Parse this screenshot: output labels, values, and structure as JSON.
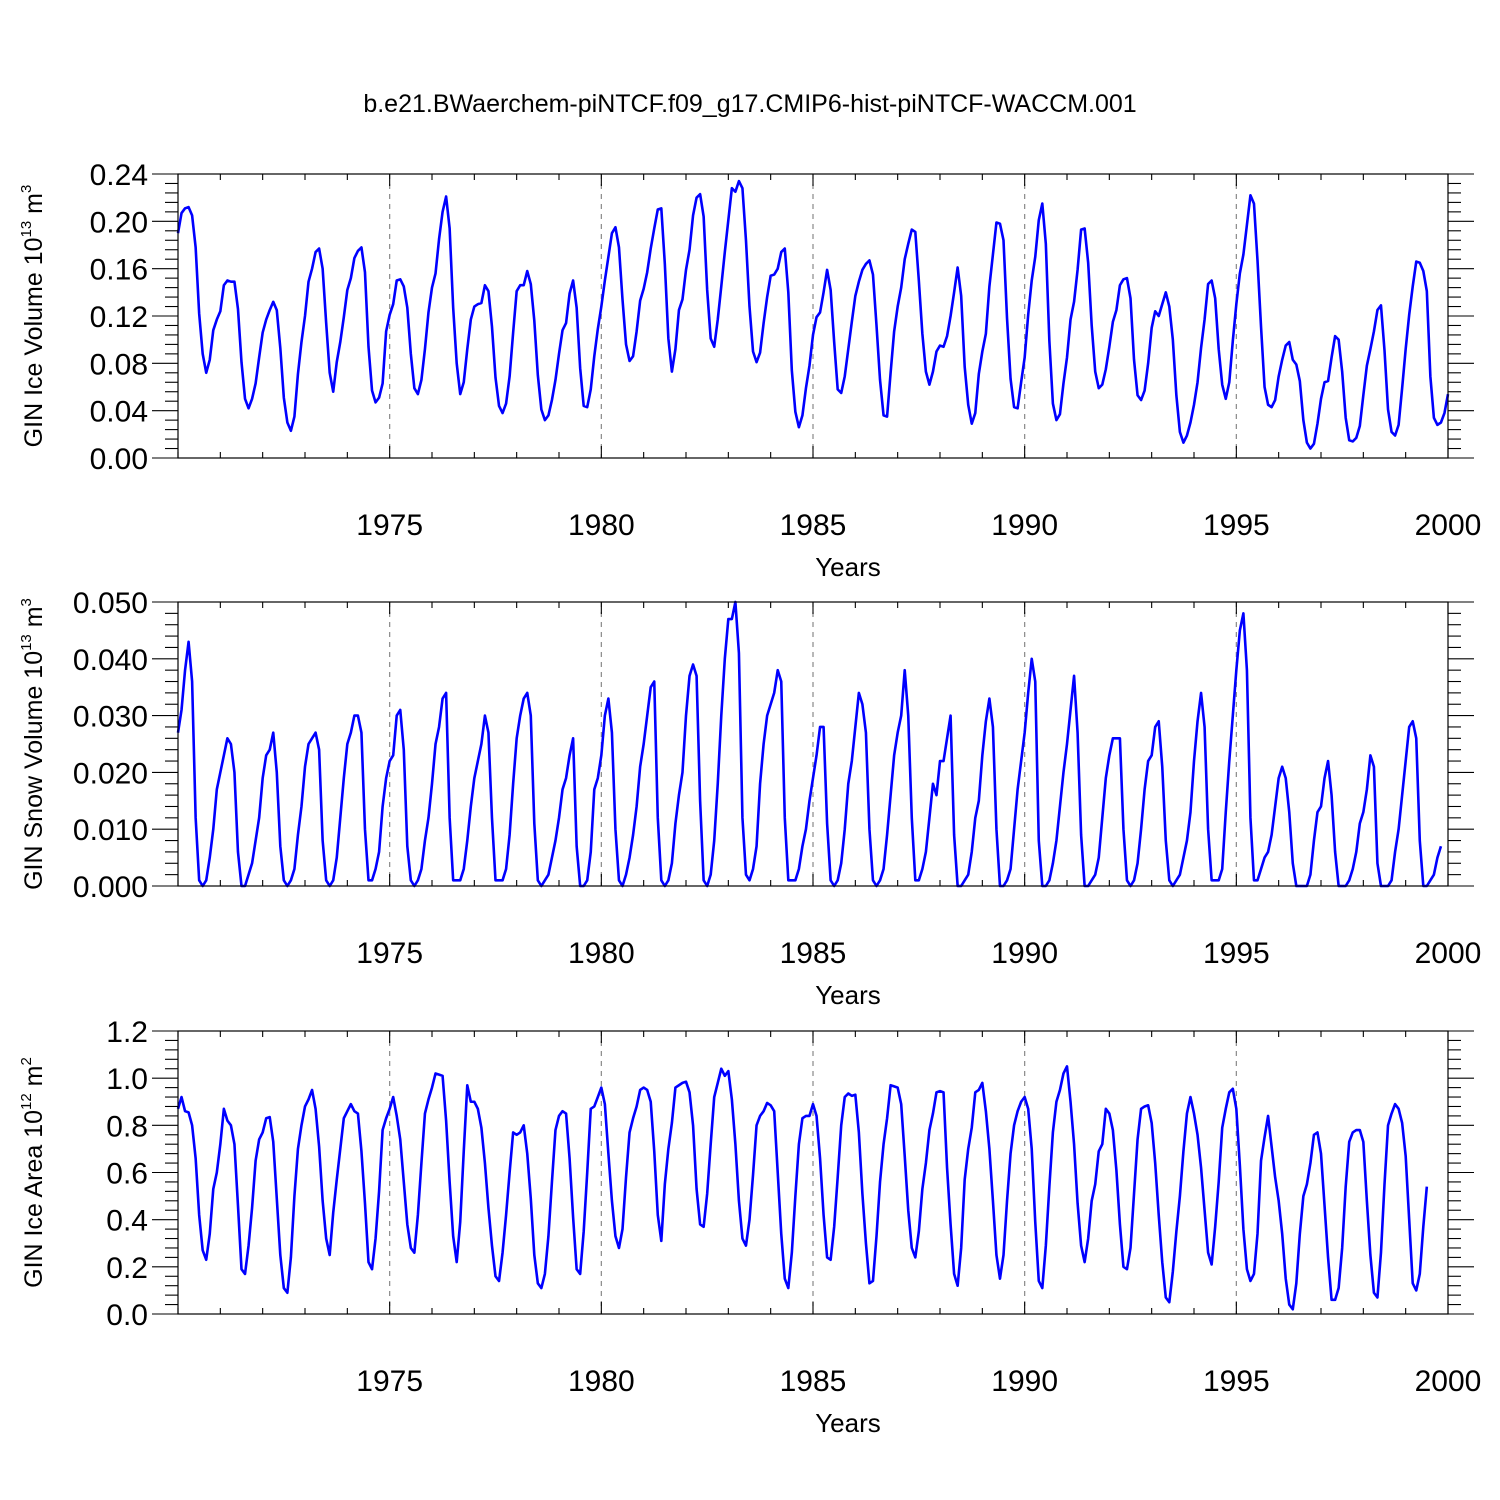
{
  "figure_title": "b.e21.BWaerchem-piNTCF.f09_g17.CMIP6-hist-piNTCF-WACCM.001",
  "colors": {
    "line": "#0000ff",
    "grid": "#888888",
    "axis": "#000000"
  },
  "chart_data": [
    {
      "type": "line",
      "name": "ice-volume",
      "ylabel": {
        "text": "GIN Ice Volume 10",
        "exp": "13",
        "unit": " m",
        "unit_exp": "3"
      },
      "xlabel": "Years",
      "xlim": [
        1970.0,
        2000.0
      ],
      "ylim": [
        0.0,
        0.24
      ],
      "xticks": [
        1975,
        1980,
        1985,
        1990,
        1995,
        2000
      ],
      "yticks": [
        "0.00",
        "0.04",
        "0.08",
        "0.12",
        "0.16",
        "0.20",
        "0.24"
      ],
      "start_year": 1970.0,
      "dx": 0.0833333,
      "values": [
        0.19,
        0.207,
        0.211,
        0.212,
        0.205,
        0.178,
        0.122,
        0.088,
        0.072,
        0.083,
        0.108,
        0.117,
        0.124,
        0.146,
        0.15,
        0.149,
        0.149,
        0.126,
        0.081,
        0.05,
        0.042,
        0.05,
        0.063,
        0.085,
        0.106,
        0.117,
        0.125,
        0.132,
        0.125,
        0.093,
        0.051,
        0.03,
        0.023,
        0.035,
        0.071,
        0.098,
        0.12,
        0.149,
        0.16,
        0.174,
        0.177,
        0.16,
        0.114,
        0.072,
        0.056,
        0.081,
        0.098,
        0.119,
        0.142,
        0.152,
        0.169,
        0.175,
        0.178,
        0.157,
        0.094,
        0.057,
        0.047,
        0.051,
        0.063,
        0.107,
        0.121,
        0.13,
        0.15,
        0.151,
        0.145,
        0.127,
        0.088,
        0.059,
        0.054,
        0.066,
        0.092,
        0.123,
        0.144,
        0.156,
        0.185,
        0.208,
        0.221,
        0.194,
        0.127,
        0.08,
        0.054,
        0.064,
        0.092,
        0.117,
        0.128,
        0.13,
        0.131,
        0.146,
        0.141,
        0.111,
        0.068,
        0.044,
        0.038,
        0.046,
        0.069,
        0.106,
        0.141,
        0.146,
        0.146,
        0.158,
        0.147,
        0.116,
        0.07,
        0.041,
        0.032,
        0.036,
        0.049,
        0.066,
        0.088,
        0.108,
        0.114,
        0.139,
        0.15,
        0.127,
        0.076,
        0.044,
        0.043,
        0.058,
        0.086,
        0.109,
        0.128,
        0.15,
        0.17,
        0.19,
        0.195,
        0.178,
        0.134,
        0.096,
        0.082,
        0.086,
        0.107,
        0.133,
        0.143,
        0.157,
        0.177,
        0.194,
        0.21,
        0.211,
        0.164,
        0.101,
        0.073,
        0.092,
        0.125,
        0.134,
        0.159,
        0.176,
        0.205,
        0.22,
        0.223,
        0.204,
        0.142,
        0.101,
        0.094,
        0.117,
        0.145,
        0.174,
        0.201,
        0.228,
        0.225,
        0.234,
        0.228,
        0.184,
        0.128,
        0.09,
        0.081,
        0.089,
        0.114,
        0.136,
        0.154,
        0.155,
        0.16,
        0.174,
        0.177,
        0.14,
        0.074,
        0.039,
        0.026,
        0.036,
        0.059,
        0.078,
        0.104,
        0.119,
        0.123,
        0.14,
        0.159,
        0.142,
        0.098,
        0.058,
        0.055,
        0.069,
        0.092,
        0.115,
        0.137,
        0.149,
        0.159,
        0.164,
        0.167,
        0.155,
        0.112,
        0.066,
        0.036,
        0.035,
        0.072,
        0.107,
        0.128,
        0.144,
        0.168,
        0.181,
        0.193,
        0.191,
        0.15,
        0.105,
        0.073,
        0.062,
        0.073,
        0.09,
        0.095,
        0.094,
        0.103,
        0.12,
        0.14,
        0.161,
        0.137,
        0.077,
        0.045,
        0.029,
        0.038,
        0.071,
        0.09,
        0.105,
        0.145,
        0.172,
        0.199,
        0.198,
        0.184,
        0.118,
        0.067,
        0.043,
        0.042,
        0.064,
        0.085,
        0.121,
        0.15,
        0.17,
        0.201,
        0.215,
        0.181,
        0.099,
        0.046,
        0.032,
        0.037,
        0.063,
        0.085,
        0.117,
        0.132,
        0.159,
        0.193,
        0.194,
        0.165,
        0.112,
        0.073,
        0.059,
        0.062,
        0.075,
        0.094,
        0.115,
        0.125,
        0.146,
        0.151,
        0.152,
        0.135,
        0.083,
        0.053,
        0.049,
        0.057,
        0.08,
        0.11,
        0.124,
        0.12,
        0.13,
        0.14,
        0.128,
        0.1,
        0.053,
        0.022,
        0.013,
        0.019,
        0.03,
        0.045,
        0.064,
        0.093,
        0.117,
        0.147,
        0.15,
        0.135,
        0.092,
        0.062,
        0.05,
        0.064,
        0.099,
        0.13,
        0.156,
        0.172,
        0.197,
        0.222,
        0.215,
        0.167,
        0.111,
        0.06,
        0.045,
        0.043,
        0.049,
        0.069,
        0.083,
        0.095,
        0.098,
        0.083,
        0.079,
        0.065,
        0.032,
        0.013,
        0.008,
        0.012,
        0.029,
        0.05,
        0.064,
        0.065,
        0.085,
        0.103,
        0.1,
        0.073,
        0.034,
        0.015,
        0.014,
        0.017,
        0.027,
        0.053,
        0.078,
        0.092,
        0.107,
        0.125,
        0.129,
        0.091,
        0.041,
        0.022,
        0.019,
        0.028,
        0.059,
        0.092,
        0.121,
        0.145,
        0.166,
        0.165,
        0.158,
        0.141,
        0.069,
        0.034,
        0.028,
        0.03,
        0.038,
        0.054
      ]
    },
    {
      "type": "line",
      "name": "snow-volume",
      "ylabel": {
        "text": "GIN Snow Volume 10",
        "exp": "13",
        "unit": " m",
        "unit_exp": "3"
      },
      "xlabel": "Years",
      "xlim": [
        1970.0,
        2000.0
      ],
      "ylim": [
        0.0,
        0.05
      ],
      "xticks": [
        1975,
        1980,
        1985,
        1990,
        1995,
        2000
      ],
      "yticks": [
        "0.000",
        "0.010",
        "0.020",
        "0.030",
        "0.040",
        "0.050"
      ],
      "start_year": 1970.0,
      "dx": 0.0833333,
      "values": [
        0.027,
        0.031,
        0.038,
        0.043,
        0.036,
        0.012,
        0.001,
        0.0,
        0.001,
        0.005,
        0.01,
        0.017,
        0.02,
        0.023,
        0.026,
        0.025,
        0.02,
        0.006,
        0.0,
        0.0,
        0.002,
        0.004,
        0.008,
        0.012,
        0.019,
        0.023,
        0.024,
        0.027,
        0.02,
        0.007,
        0.001,
        0.0,
        0.001,
        0.003,
        0.009,
        0.014,
        0.021,
        0.025,
        0.026,
        0.027,
        0.024,
        0.008,
        0.001,
        0.0,
        0.001,
        0.005,
        0.012,
        0.019,
        0.025,
        0.027,
        0.03,
        0.03,
        0.027,
        0.01,
        0.001,
        0.001,
        0.003,
        0.006,
        0.014,
        0.019,
        0.022,
        0.023,
        0.03,
        0.031,
        0.024,
        0.007,
        0.001,
        0.0,
        0.001,
        0.003,
        0.008,
        0.012,
        0.018,
        0.025,
        0.028,
        0.033,
        0.034,
        0.012,
        0.001,
        0.001,
        0.001,
        0.003,
        0.008,
        0.014,
        0.019,
        0.022,
        0.025,
        0.03,
        0.027,
        0.012,
        0.001,
        0.001,
        0.001,
        0.003,
        0.009,
        0.018,
        0.026,
        0.03,
        0.033,
        0.034,
        0.03,
        0.011,
        0.001,
        0.0,
        0.001,
        0.002,
        0.005,
        0.008,
        0.012,
        0.017,
        0.019,
        0.023,
        0.026,
        0.007,
        0.0,
        0.0,
        0.001,
        0.006,
        0.017,
        0.019,
        0.023,
        0.03,
        0.033,
        0.027,
        0.01,
        0.001,
        0.0,
        0.002,
        0.005,
        0.009,
        0.014,
        0.021,
        0.025,
        0.03,
        0.035,
        0.036,
        0.012,
        0.001,
        0.0,
        0.001,
        0.004,
        0.011,
        0.016,
        0.02,
        0.03,
        0.037,
        0.039,
        0.037,
        0.015,
        0.001,
        0.0,
        0.002,
        0.008,
        0.018,
        0.03,
        0.04,
        0.047,
        0.047,
        0.05,
        0.041,
        0.012,
        0.002,
        0.001,
        0.003,
        0.007,
        0.018,
        0.025,
        0.03,
        0.032,
        0.034,
        0.038,
        0.036,
        0.012,
        0.001,
        0.001,
        0.001,
        0.003,
        0.007,
        0.01,
        0.015,
        0.019,
        0.023,
        0.028,
        0.028,
        0.011,
        0.001,
        0.0,
        0.001,
        0.004,
        0.01,
        0.018,
        0.022,
        0.028,
        0.034,
        0.032,
        0.027,
        0.01,
        0.001,
        0.0,
        0.001,
        0.003,
        0.009,
        0.016,
        0.023,
        0.027,
        0.03,
        0.038,
        0.03,
        0.012,
        0.001,
        0.001,
        0.003,
        0.006,
        0.012,
        0.018,
        0.016,
        0.022,
        0.022,
        0.026,
        0.03,
        0.009,
        0.0,
        0.0,
        0.001,
        0.002,
        0.006,
        0.012,
        0.015,
        0.023,
        0.029,
        0.033,
        0.028,
        0.01,
        0.0,
        0.0,
        0.001,
        0.003,
        0.01,
        0.017,
        0.022,
        0.027,
        0.034,
        0.04,
        0.036,
        0.008,
        0.0,
        0.0,
        0.001,
        0.004,
        0.008,
        0.014,
        0.02,
        0.025,
        0.031,
        0.037,
        0.027,
        0.009,
        0.0,
        0.0,
        0.001,
        0.002,
        0.005,
        0.012,
        0.019,
        0.023,
        0.026,
        0.026,
        0.026,
        0.01,
        0.001,
        0.0,
        0.001,
        0.004,
        0.01,
        0.017,
        0.022,
        0.023,
        0.028,
        0.029,
        0.021,
        0.008,
        0.001,
        0.0,
        0.001,
        0.002,
        0.005,
        0.008,
        0.013,
        0.022,
        0.029,
        0.034,
        0.028,
        0.01,
        0.001,
        0.001,
        0.001,
        0.003,
        0.013,
        0.022,
        0.03,
        0.038,
        0.045,
        0.048,
        0.038,
        0.012,
        0.001,
        0.001,
        0.003,
        0.005,
        0.006,
        0.009,
        0.014,
        0.019,
        0.021,
        0.019,
        0.013,
        0.004,
        0.0,
        0.0,
        0.0,
        0.0,
        0.002,
        0.008,
        0.013,
        0.014,
        0.019,
        0.022,
        0.016,
        0.006,
        0.0,
        0.0,
        0.0,
        0.001,
        0.003,
        0.006,
        0.011,
        0.013,
        0.017,
        0.023,
        0.021,
        0.004,
        0.0,
        0.0,
        0.0,
        0.001,
        0.006,
        0.01,
        0.016,
        0.022,
        0.028,
        0.029,
        0.026,
        0.008,
        0.0,
        0.0,
        0.001,
        0.002,
        0.005,
        0.007
      ]
    },
    {
      "type": "line",
      "name": "ice-area",
      "ylabel": {
        "text": "GIN Ice Area 10",
        "exp": "12",
        "unit": " m",
        "unit_exp": "2"
      },
      "xlabel": "Years",
      "xlim": [
        1970.0,
        2000.0
      ],
      "ylim": [
        0.0,
        1.2
      ],
      "xticks": [
        1975,
        1980,
        1985,
        1990,
        1995,
        2000
      ],
      "yticks": [
        "0.0",
        "0.2",
        "0.4",
        "0.6",
        "0.8",
        "1.0",
        "1.2"
      ],
      "start_year": 1970.0,
      "dx": 0.0833333,
      "values": [
        0.87,
        0.92,
        0.86,
        0.855,
        0.8,
        0.66,
        0.42,
        0.27,
        0.23,
        0.34,
        0.53,
        0.6,
        0.72,
        0.87,
        0.82,
        0.8,
        0.72,
        0.46,
        0.19,
        0.17,
        0.29,
        0.45,
        0.65,
        0.74,
        0.77,
        0.83,
        0.835,
        0.73,
        0.49,
        0.25,
        0.11,
        0.09,
        0.24,
        0.5,
        0.7,
        0.8,
        0.88,
        0.91,
        0.95,
        0.87,
        0.71,
        0.48,
        0.32,
        0.25,
        0.43,
        0.57,
        0.7,
        0.83,
        0.86,
        0.89,
        0.86,
        0.85,
        0.69,
        0.47,
        0.22,
        0.19,
        0.32,
        0.52,
        0.78,
        0.83,
        0.87,
        0.92,
        0.84,
        0.74,
        0.56,
        0.38,
        0.28,
        0.26,
        0.42,
        0.64,
        0.85,
        0.91,
        0.96,
        1.02,
        1.015,
        1.01,
        0.82,
        0.56,
        0.33,
        0.22,
        0.39,
        0.69,
        0.97,
        0.9,
        0.9,
        0.87,
        0.79,
        0.64,
        0.45,
        0.29,
        0.16,
        0.14,
        0.26,
        0.42,
        0.6,
        0.77,
        0.76,
        0.77,
        0.8,
        0.68,
        0.49,
        0.25,
        0.13,
        0.11,
        0.17,
        0.33,
        0.56,
        0.78,
        0.84,
        0.86,
        0.85,
        0.66,
        0.41,
        0.19,
        0.17,
        0.35,
        0.6,
        0.87,
        0.88,
        0.92,
        0.96,
        0.89,
        0.68,
        0.48,
        0.33,
        0.28,
        0.36,
        0.58,
        0.77,
        0.83,
        0.88,
        0.95,
        0.96,
        0.95,
        0.9,
        0.69,
        0.42,
        0.31,
        0.55,
        0.7,
        0.81,
        0.96,
        0.97,
        0.98,
        0.985,
        0.94,
        0.8,
        0.53,
        0.38,
        0.37,
        0.51,
        0.72,
        0.92,
        0.98,
        1.04,
        1.01,
        1.03,
        0.91,
        0.72,
        0.48,
        0.32,
        0.29,
        0.4,
        0.59,
        0.8,
        0.84,
        0.86,
        0.895,
        0.885,
        0.86,
        0.6,
        0.34,
        0.15,
        0.11,
        0.26,
        0.5,
        0.72,
        0.83,
        0.84,
        0.84,
        0.89,
        0.84,
        0.66,
        0.42,
        0.24,
        0.23,
        0.37,
        0.58,
        0.8,
        0.92,
        0.935,
        0.925,
        0.93,
        0.77,
        0.51,
        0.3,
        0.13,
        0.14,
        0.33,
        0.56,
        0.72,
        0.83,
        0.97,
        0.965,
        0.96,
        0.89,
        0.67,
        0.44,
        0.28,
        0.24,
        0.35,
        0.53,
        0.64,
        0.78,
        0.85,
        0.94,
        0.945,
        0.94,
        0.62,
        0.38,
        0.17,
        0.12,
        0.28,
        0.57,
        0.7,
        0.79,
        0.94,
        0.95,
        0.98,
        0.86,
        0.7,
        0.48,
        0.25,
        0.15,
        0.25,
        0.48,
        0.68,
        0.8,
        0.86,
        0.9,
        0.92,
        0.87,
        0.7,
        0.39,
        0.14,
        0.11,
        0.29,
        0.54,
        0.77,
        0.9,
        0.95,
        1.02,
        1.05,
        0.9,
        0.72,
        0.47,
        0.29,
        0.22,
        0.32,
        0.48,
        0.55,
        0.69,
        0.72,
        0.87,
        0.85,
        0.78,
        0.61,
        0.38,
        0.2,
        0.19,
        0.28,
        0.51,
        0.74,
        0.87,
        0.88,
        0.885,
        0.81,
        0.64,
        0.42,
        0.22,
        0.07,
        0.05,
        0.18,
        0.35,
        0.5,
        0.69,
        0.85,
        0.92,
        0.85,
        0.76,
        0.62,
        0.44,
        0.26,
        0.21,
        0.37,
        0.56,
        0.79,
        0.87,
        0.94,
        0.955,
        0.87,
        0.63,
        0.36,
        0.19,
        0.14,
        0.17,
        0.34,
        0.65,
        0.75,
        0.84,
        0.71,
        0.58,
        0.48,
        0.34,
        0.15,
        0.04,
        0.02,
        0.13,
        0.34,
        0.5,
        0.55,
        0.64,
        0.76,
        0.77,
        0.68,
        0.46,
        0.24,
        0.06,
        0.06,
        0.11,
        0.28,
        0.54,
        0.73,
        0.77,
        0.78,
        0.78,
        0.73,
        0.48,
        0.25,
        0.09,
        0.07,
        0.26,
        0.55,
        0.8,
        0.85,
        0.89,
        0.87,
        0.81,
        0.67,
        0.4,
        0.13,
        0.1,
        0.17,
        0.37,
        0.54
      ]
    }
  ]
}
